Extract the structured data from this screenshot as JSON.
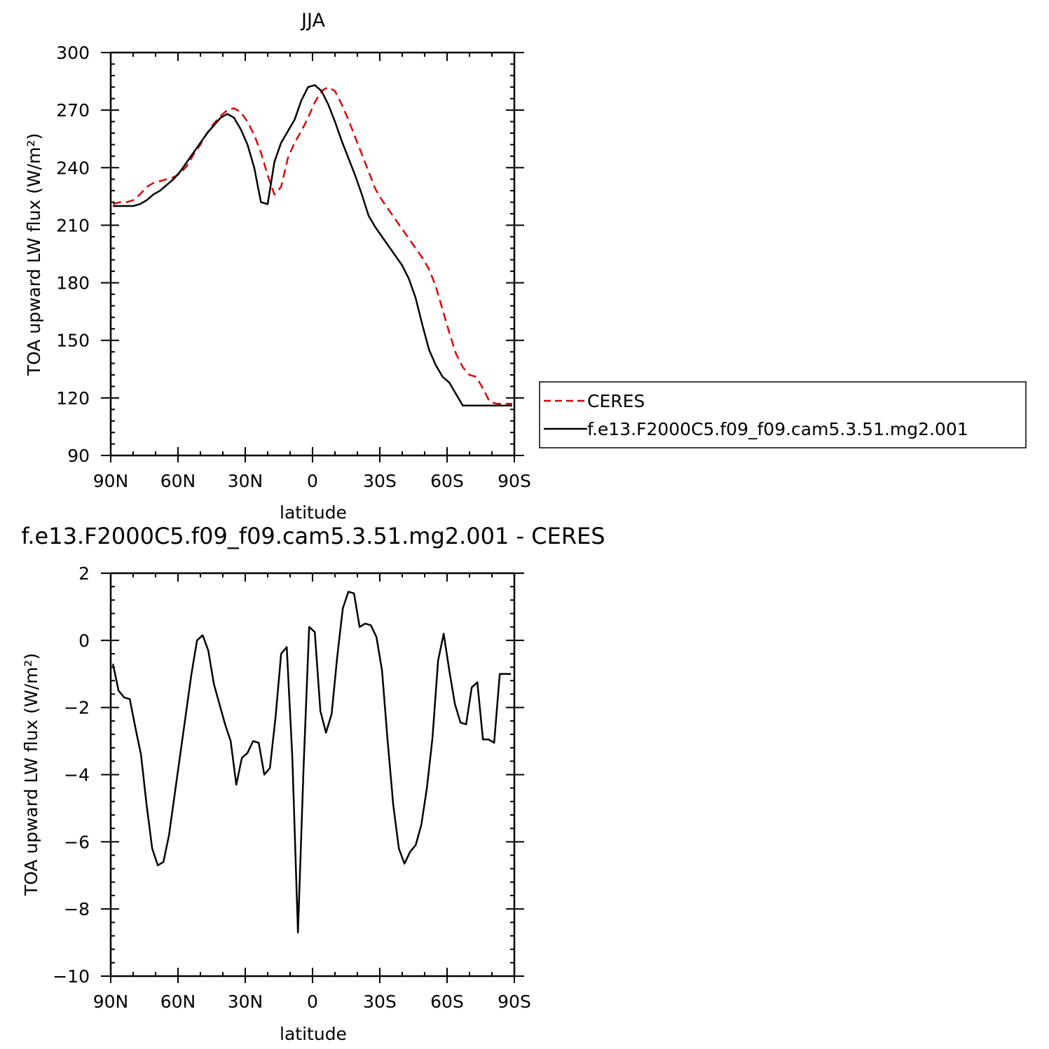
{
  "chart_data": [
    {
      "type": "line",
      "title": "JJA",
      "xlabel": "latitude",
      "ylabel": "TOA upward LW flux (W/m²)",
      "xlim": [
        90,
        -90
      ],
      "ylim": [
        90,
        300
      ],
      "x_ticks": [
        {
          "value": 90,
          "label": "90N"
        },
        {
          "value": 60,
          "label": "60N"
        },
        {
          "value": 30,
          "label": "30N"
        },
        {
          "value": 0,
          "label": "0"
        },
        {
          "value": -30,
          "label": "30S"
        },
        {
          "value": -60,
          "label": "60S"
        },
        {
          "value": -90,
          "label": "90S"
        }
      ],
      "y_ticks": [
        90,
        120,
        150,
        180,
        210,
        240,
        270,
        300
      ],
      "legend": "right",
      "series": [
        {
          "name": "CERES",
          "color": "#e00000",
          "style": "dashed",
          "x": [
            89,
            86,
            83,
            80,
            77,
            74,
            71,
            68,
            65,
            62,
            59,
            56,
            53,
            50,
            47,
            44,
            41,
            38,
            35,
            32,
            29,
            26,
            23,
            20,
            17,
            14,
            11,
            8,
            5,
            2,
            -1,
            -4,
            -7,
            -10,
            -13,
            -16,
            -19,
            -22,
            -25,
            -28,
            -31,
            -34,
            -37,
            -40,
            -43,
            -46,
            -49,
            -52,
            -55,
            -58,
            -61,
            -64,
            -67,
            -70,
            -73,
            -76,
            -79,
            -82,
            -85,
            -89
          ],
          "values": [
            221,
            222,
            222,
            223,
            226,
            230,
            232,
            233,
            234,
            235,
            237,
            241,
            247,
            252,
            258,
            263,
            267,
            270,
            271,
            269,
            264,
            257,
            248,
            236,
            226,
            230,
            245,
            253,
            259,
            266,
            274,
            280,
            282,
            280,
            273,
            265,
            256,
            247,
            238,
            229,
            223,
            218,
            213,
            208,
            203,
            198,
            193,
            187,
            178,
            166,
            154,
            143,
            136,
            132,
            131,
            125,
            118,
            117,
            117,
            117
          ]
        },
        {
          "name": "f.e13.F2000C5.f09_f09.cam5.3.51.mg2.001",
          "color": "#000000",
          "style": "solid",
          "x": [
            89,
            86,
            83,
            80,
            77,
            74,
            71,
            68,
            65,
            62,
            59,
            56,
            53,
            50,
            47,
            44,
            41,
            38,
            35,
            32,
            29,
            26,
            23,
            20,
            17,
            14,
            11,
            8,
            5,
            2,
            -1,
            -4,
            -7,
            -10,
            -13,
            -16,
            -19,
            -22,
            -25,
            -28,
            -31,
            -34,
            -37,
            -40,
            -43,
            -46,
            -49,
            -52,
            -55,
            -58,
            -61,
            -64,
            -67,
            -70,
            -73,
            -76,
            -79,
            -82,
            -85,
            -89
          ],
          "values": [
            220,
            220,
            220,
            220,
            221,
            223,
            226,
            228,
            231,
            234,
            238,
            243,
            248,
            253,
            258,
            262,
            266,
            268,
            266,
            260,
            252,
            240,
            222,
            221,
            243,
            253,
            259,
            265,
            275,
            282,
            283,
            280,
            273,
            264,
            254,
            245,
            236,
            226,
            215,
            209,
            204,
            199,
            194,
            189,
            182,
            172,
            158,
            145,
            137,
            131,
            128,
            122,
            116,
            116,
            116,
            116,
            116,
            116,
            116,
            116
          ]
        }
      ]
    },
    {
      "type": "line",
      "title": "f.e13.F2000C5.f09_f09.cam5.3.51.mg2.001 - CERES",
      "xlabel": "latitude",
      "ylabel": "TOA upward LW flux (W/m²)",
      "xlim": [
        90,
        -90
      ],
      "ylim": [
        -10,
        2
      ],
      "x_ticks": [
        {
          "value": 90,
          "label": "90N"
        },
        {
          "value": 60,
          "label": "60N"
        },
        {
          "value": 30,
          "label": "30N"
        },
        {
          "value": 0,
          "label": "0"
        },
        {
          "value": -30,
          "label": "30S"
        },
        {
          "value": -60,
          "label": "60S"
        },
        {
          "value": -90,
          "label": "90S"
        }
      ],
      "y_ticks": [
        -10,
        -8,
        -6,
        -4,
        -2,
        0,
        2
      ],
      "series": [
        {
          "name": "",
          "color": "#000000",
          "style": "solid",
          "x": [
            89,
            86.5,
            84,
            81.5,
            79,
            76.5,
            74,
            71.5,
            69,
            66.5,
            64,
            61.5,
            59,
            56.5,
            54,
            51.5,
            49,
            46.5,
            44,
            41.5,
            39,
            36.5,
            34,
            31.5,
            29,
            26.5,
            24,
            21.5,
            19,
            16.5,
            14,
            11.5,
            9,
            6.5,
            4,
            1.5,
            -1,
            -3.5,
            -6,
            -8.5,
            -11,
            -13.5,
            -16,
            -18.5,
            -21,
            -23.5,
            -26,
            -28.5,
            -31,
            -33.5,
            -36,
            -38.5,
            -41,
            -43.5,
            -46,
            -48.5,
            -51,
            -53.5,
            -56,
            -58.5,
            -61,
            -63.5,
            -66,
            -68.5,
            -71,
            -73.5,
            -76,
            -78.5,
            -81,
            -83.5,
            -86,
            -88.5
          ],
          "values": [
            -0.7,
            -1.5,
            -1.7,
            -1.75,
            -2.6,
            -3.4,
            -4.9,
            -6.2,
            -6.7,
            -6.6,
            -5.8,
            -4.6,
            -3.4,
            -2.2,
            -1.0,
            0.0,
            0.15,
            -0.3,
            -1.3,
            -1.9,
            -2.5,
            -3.0,
            -4.3,
            -3.5,
            -3.35,
            -3.0,
            -3.05,
            -4.0,
            -3.8,
            -2.3,
            -0.4,
            -0.2,
            -3.5,
            -8.7,
            -3.8,
            0.4,
            0.25,
            -2.1,
            -2.75,
            -2.2,
            -0.5,
            0.95,
            1.45,
            1.4,
            0.4,
            0.5,
            0.45,
            0.1,
            -0.9,
            -3.0,
            -4.9,
            -6.2,
            -6.65,
            -6.3,
            -6.1,
            -5.5,
            -4.4,
            -2.9,
            -0.6,
            0.2,
            -0.9,
            -1.9,
            -2.45,
            -2.5,
            -1.4,
            -1.25,
            -2.95,
            -2.95,
            -3.05,
            -1.0,
            -1.0,
            -1.0
          ]
        }
      ]
    }
  ]
}
